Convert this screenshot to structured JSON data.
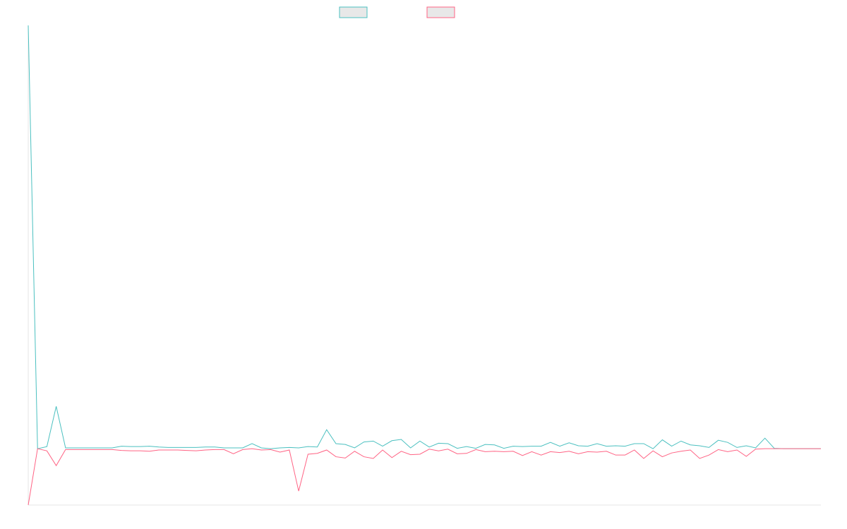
{
  "colors": {
    "series_a": "#4bc0c0",
    "series_b": "#ff6384",
    "swatch_fill": "#e8e8e8",
    "axis": "#e6e6e6",
    "background": "#ffffff"
  },
  "chart_data": {
    "type": "line",
    "title": "",
    "xlabel": "",
    "ylabel": "",
    "grid": false,
    "legend_position": "top-center",
    "x": [
      0,
      1,
      2,
      3,
      4,
      5,
      6,
      7,
      8,
      9,
      10,
      11,
      12,
      13,
      14,
      15,
      16,
      17,
      18,
      19,
      20,
      21,
      22,
      23,
      24,
      25,
      26,
      27,
      28,
      29,
      30,
      31,
      32,
      33,
      34,
      35,
      36,
      37,
      38,
      39,
      40,
      41,
      42,
      43,
      44,
      45,
      46,
      47,
      48,
      49,
      50,
      51,
      52,
      53,
      54,
      55,
      56,
      57,
      58,
      59,
      60,
      61,
      62,
      63,
      64,
      65,
      66,
      67,
      68,
      69,
      70,
      71,
      72,
      73,
      74,
      75,
      76,
      77,
      78,
      79,
      80,
      81,
      82,
      83,
      84,
      85
    ],
    "xlim": [
      0,
      85
    ],
    "ylim": [
      -13.3,
      100
    ],
    "series": [
      {
        "name": "",
        "color_key": "series_a",
        "values": [
          100,
          0,
          0.5,
          10,
          0.2,
          0.2,
          0.2,
          0.2,
          0.2,
          0.2,
          0.6,
          0.5,
          0.5,
          0.6,
          0.4,
          0.3,
          0.3,
          0.3,
          0.3,
          0.4,
          0.4,
          0.2,
          0.2,
          0.2,
          1.2,
          0.2,
          0,
          0.2,
          0.3,
          0.2,
          0.5,
          0.4,
          4.5,
          1.2,
          1,
          0.2,
          1.6,
          1.8,
          0.6,
          1.9,
          2.2,
          0.2,
          1.8,
          0.4,
          1.3,
          1.2,
          0.1,
          0.5,
          0.1,
          1,
          0.9,
          0.1,
          0.6,
          0.5,
          0.6,
          0.6,
          1.5,
          0.6,
          1.4,
          0.7,
          0.6,
          1.2,
          0.6,
          0.7,
          0.6,
          1.2,
          1.2,
          0,
          2.1,
          0.6,
          1.8,
          0.9,
          0.7,
          0.3,
          2,
          1.5,
          0.3,
          0.7,
          0.2,
          2.5,
          0.1,
          0,
          0,
          0,
          0,
          0
        ]
      },
      {
        "name": "",
        "color_key": "series_b",
        "values": [
          -13.3,
          0,
          -0.5,
          -4,
          -0.2,
          -0.2,
          -0.2,
          -0.2,
          -0.2,
          -0.2,
          -0.4,
          -0.5,
          -0.5,
          -0.6,
          -0.3,
          -0.3,
          -0.3,
          -0.4,
          -0.5,
          -0.3,
          -0.2,
          -0.2,
          -1.2,
          -0.2,
          0,
          -0.3,
          -0.2,
          -0.8,
          -0.3,
          -10,
          -1.3,
          -1.1,
          -0.3,
          -1.9,
          -2.2,
          -0.6,
          -1.9,
          -2.3,
          -0.3,
          -2.1,
          -0.6,
          -1.4,
          -1.3,
          -0.1,
          -0.5,
          -0.1,
          -1.2,
          -1.1,
          -0.2,
          -0.7,
          -0.6,
          -0.7,
          -0.6,
          -1.6,
          -0.7,
          -1.5,
          -0.7,
          -0.9,
          -0.6,
          -1.2,
          -0.7,
          -0.8,
          -0.6,
          -1.5,
          -1.5,
          -0.3,
          -2.3,
          -0.5,
          -1.9,
          -1,
          -0.6,
          -0.3,
          -2.3,
          -1.5,
          -0.2,
          -0.7,
          -0.3,
          -1.8,
          -0.1,
          0,
          0,
          0,
          0,
          0,
          0,
          0
        ]
      }
    ]
  }
}
